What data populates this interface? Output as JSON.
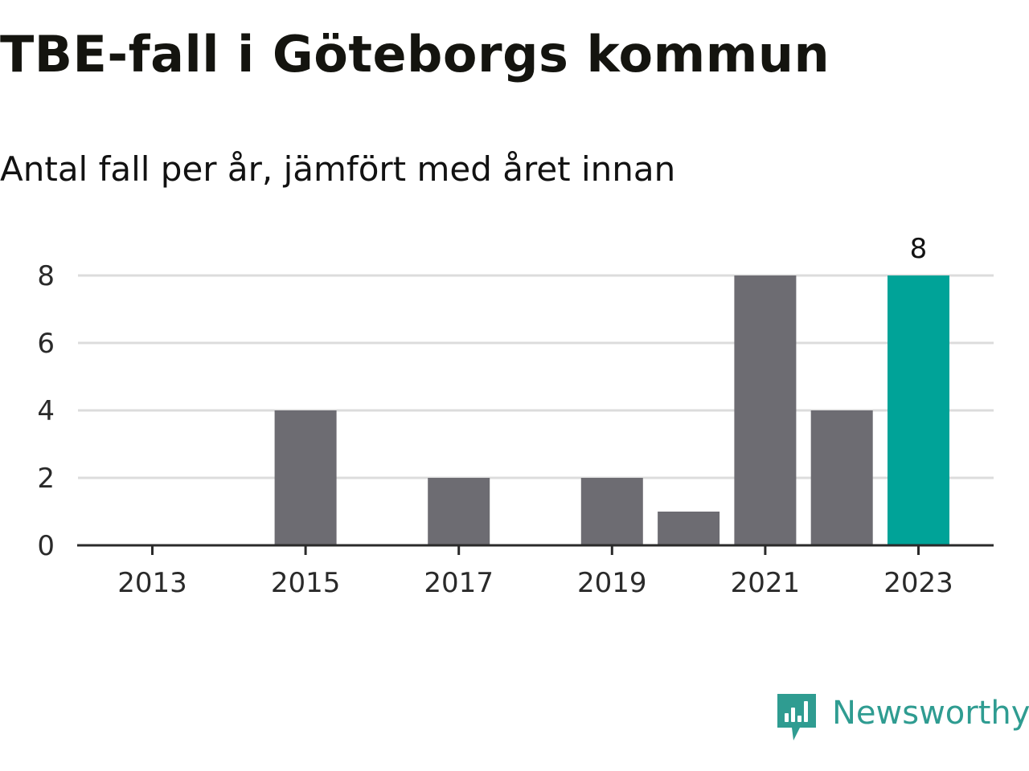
{
  "title": "TBE-fall i Göteborgs kommun",
  "subtitle": "Antal fall per år, jämfört med året innan",
  "brand": {
    "name": "Newsworthy",
    "icon": "newsworthy-logo-icon",
    "color": "#2f9c91"
  },
  "colors": {
    "bar_default": "#6d6c72",
    "bar_highlight": "#00a398",
    "grid": "#dcdcdc",
    "axis": "#2a2a2a"
  },
  "chart_data": {
    "type": "bar",
    "x": [
      2013,
      2014,
      2015,
      2016,
      2017,
      2018,
      2019,
      2020,
      2021,
      2022,
      2023
    ],
    "values": [
      0,
      0,
      4,
      0,
      2,
      0,
      2,
      1,
      8,
      4,
      8
    ],
    "highlight": 2023,
    "x_tick_labels": [
      "2013",
      "2015",
      "2017",
      "2019",
      "2021",
      "2023"
    ],
    "y_ticks": [
      0,
      2,
      4,
      6,
      8
    ],
    "ylim": [
      0,
      8
    ],
    "grid": true,
    "data_labels": [
      {
        "x": 2023,
        "text": "8"
      }
    ],
    "xlabel": "",
    "ylabel": ""
  }
}
